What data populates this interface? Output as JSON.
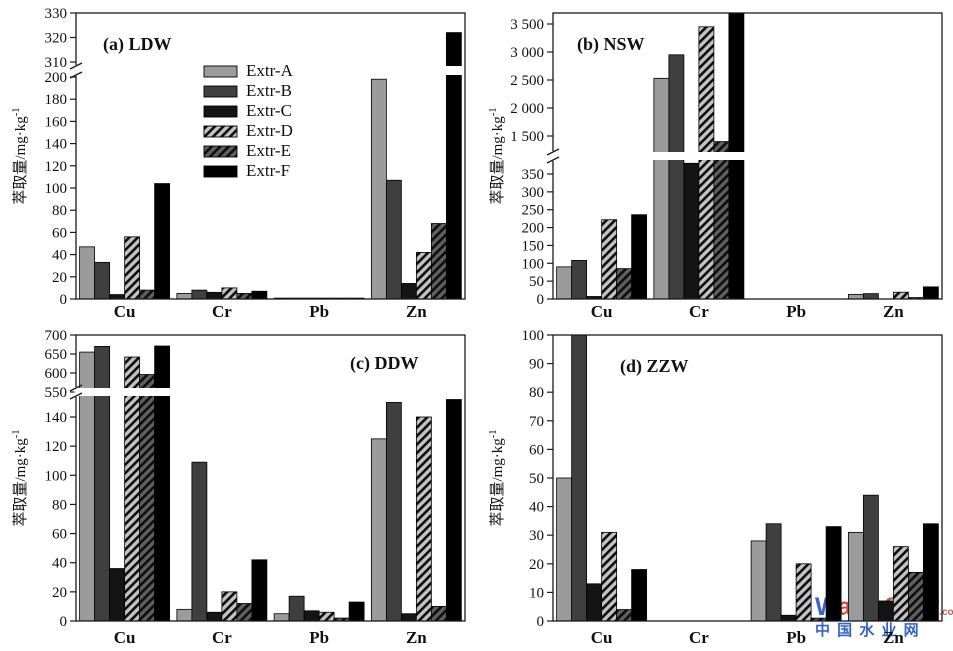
{
  "figure": {
    "ylabel_main": "萃取量/mg·kg",
    "ylabel_sup": "-1",
    "categories": [
      "Cu",
      "Cr",
      "Pb",
      "Zn"
    ],
    "legend_items": [
      "Extr-A",
      "Extr-B",
      "Extr-C",
      "Extr-D",
      "Extr-E",
      "Extr-F"
    ],
    "series_fills": [
      "#9b9b9b",
      "#3f3f3f",
      "#141414",
      "hatch-light",
      "hatch-dark",
      "#000000"
    ],
    "hatch_light_bg": "#c3c3c3",
    "hatch_dark_bg": "#5f5f5f",
    "hatch_line": "#0d0d0d",
    "frame_color": "#1a1a1a",
    "text_color": "#111111"
  },
  "chart_data": [
    {
      "type": "bar",
      "title": "(a) LDW",
      "ylabel": "萃取量/mg·kg⁻¹",
      "categories": [
        "Cu",
        "Cr",
        "Pb",
        "Zn"
      ],
      "series": [
        {
          "name": "Extr-A",
          "values": [
            47,
            5,
            0.8,
            198
          ]
        },
        {
          "name": "Extr-B",
          "values": [
            33,
            8,
            0.8,
            107
          ]
        },
        {
          "name": "Extr-C",
          "values": [
            4,
            6,
            0.8,
            14
          ]
        },
        {
          "name": "Extr-D",
          "values": [
            56,
            10,
            0.8,
            42
          ]
        },
        {
          "name": "Extr-E",
          "values": [
            8,
            5,
            0.8,
            68
          ]
        },
        {
          "name": "Extr-F",
          "values": [
            104,
            7,
            0.8,
            322
          ]
        }
      ],
      "axis": {
        "break": true,
        "lower": {
          "ticks": [
            0,
            20,
            40,
            60,
            80,
            100,
            120,
            140,
            160,
            180,
            200
          ],
          "labels": [
            "0",
            "20",
            "40",
            "60",
            "80",
            "100",
            "120",
            "140",
            "160",
            "180",
            "200"
          ]
        },
        "upper": {
          "ticks": [
            310,
            320,
            330
          ],
          "labels": [
            "310",
            "320",
            "330"
          ]
        }
      },
      "legend": true
    },
    {
      "type": "bar",
      "title": "(b) NSW",
      "ylabel": "萃取量/mg·kg⁻¹",
      "categories": [
        "Cu",
        "Cr",
        "Pb",
        "Zn"
      ],
      "series": [
        {
          "name": "Extr-A",
          "values": [
            90,
            2530,
            0,
            13
          ]
        },
        {
          "name": "Extr-B",
          "values": [
            108,
            2950,
            0,
            15
          ]
        },
        {
          "name": "Extr-C",
          "values": [
            7,
            380,
            0,
            1
          ]
        },
        {
          "name": "Extr-D",
          "values": [
            222,
            3450,
            0,
            19
          ]
        },
        {
          "name": "Extr-E",
          "values": [
            85,
            1400,
            0,
            4
          ]
        },
        {
          "name": "Extr-F",
          "values": [
            236,
            3700,
            0,
            34
          ]
        }
      ],
      "axis": {
        "break": true,
        "lower": {
          "ticks": [
            0,
            50,
            100,
            150,
            200,
            250,
            300,
            350
          ],
          "labels": [
            "0",
            "50",
            "100",
            "150",
            "200",
            "250",
            "300",
            "350"
          ]
        },
        "upper": {
          "ticks": [
            1500,
            2000,
            2500,
            3000,
            3500
          ],
          "labels": [
            "1 500",
            "2 000",
            "2 500",
            "3 000",
            "3 500"
          ]
        }
      },
      "legend": false
    },
    {
      "type": "bar",
      "title": "(c) DDW",
      "ylabel": "萃取量/mg·kg⁻¹",
      "categories": [
        "Cu",
        "Cr",
        "Pb",
        "Zn"
      ],
      "series": [
        {
          "name": "Extr-A",
          "values": [
            655,
            8,
            5,
            125
          ]
        },
        {
          "name": "Extr-B",
          "values": [
            670,
            109,
            17,
            150
          ]
        },
        {
          "name": "Extr-C",
          "values": [
            36,
            6,
            7,
            5
          ]
        },
        {
          "name": "Extr-D",
          "values": [
            642,
            20,
            6,
            140
          ]
        },
        {
          "name": "Extr-E",
          "values": [
            596,
            12,
            2,
            10
          ]
        },
        {
          "name": "Extr-F",
          "values": [
            671,
            42,
            13,
            152
          ]
        }
      ],
      "axis": {
        "break": true,
        "lower": {
          "ticks": [
            0,
            20,
            40,
            60,
            80,
            100,
            120,
            140
          ],
          "labels": [
            "0",
            "20",
            "40",
            "60",
            "80",
            "100",
            "120",
            "140"
          ]
        },
        "upper": {
          "ticks": [
            550,
            600,
            650,
            700
          ],
          "labels": [
            "550",
            "600",
            "650",
            "700"
          ]
        }
      },
      "legend": false
    },
    {
      "type": "bar",
      "title": "(d) ZZW",
      "ylabel": "萃取量/mg·kg⁻¹",
      "categories": [
        "Cu",
        "Cr",
        "Pb",
        "Zn"
      ],
      "series": [
        {
          "name": "Extr-A",
          "values": [
            50,
            0,
            28,
            31
          ]
        },
        {
          "name": "Extr-B",
          "values": [
            100,
            0,
            34,
            44
          ]
        },
        {
          "name": "Extr-C",
          "values": [
            13,
            0,
            2,
            7
          ]
        },
        {
          "name": "Extr-D",
          "values": [
            31,
            0,
            20,
            26
          ]
        },
        {
          "name": "Extr-E",
          "values": [
            4,
            0,
            1,
            17
          ]
        },
        {
          "name": "Extr-F",
          "values": [
            18,
            0,
            33,
            34
          ]
        }
      ],
      "axis": {
        "break": false,
        "lower": {
          "ticks": [
            0,
            10,
            20,
            30,
            40,
            50,
            60,
            70,
            80,
            90,
            100
          ],
          "labels": [
            "0",
            "10",
            "20",
            "30",
            "40",
            "50",
            "60",
            "70",
            "80",
            "90",
            "100"
          ]
        }
      },
      "legend": false
    }
  ],
  "watermark": {
    "line1": [
      {
        "t": "W",
        "c": "#2c57c9"
      },
      {
        "t": "a",
        "c": "#d23b2c"
      },
      {
        "t": "t",
        "c": "#e8a33b"
      },
      {
        "t": "e",
        "c": "#3e9b3e"
      },
      {
        "t": "r",
        "c": "#d23b2c"
      },
      {
        "t": "8848",
        "c": "#b05050",
        "num": true
      }
    ],
    "dotcom": ".com",
    "dotcom_color": "#c0504d",
    "line2": "中 国 水 业 网",
    "line2_color": "#2156c8"
  }
}
